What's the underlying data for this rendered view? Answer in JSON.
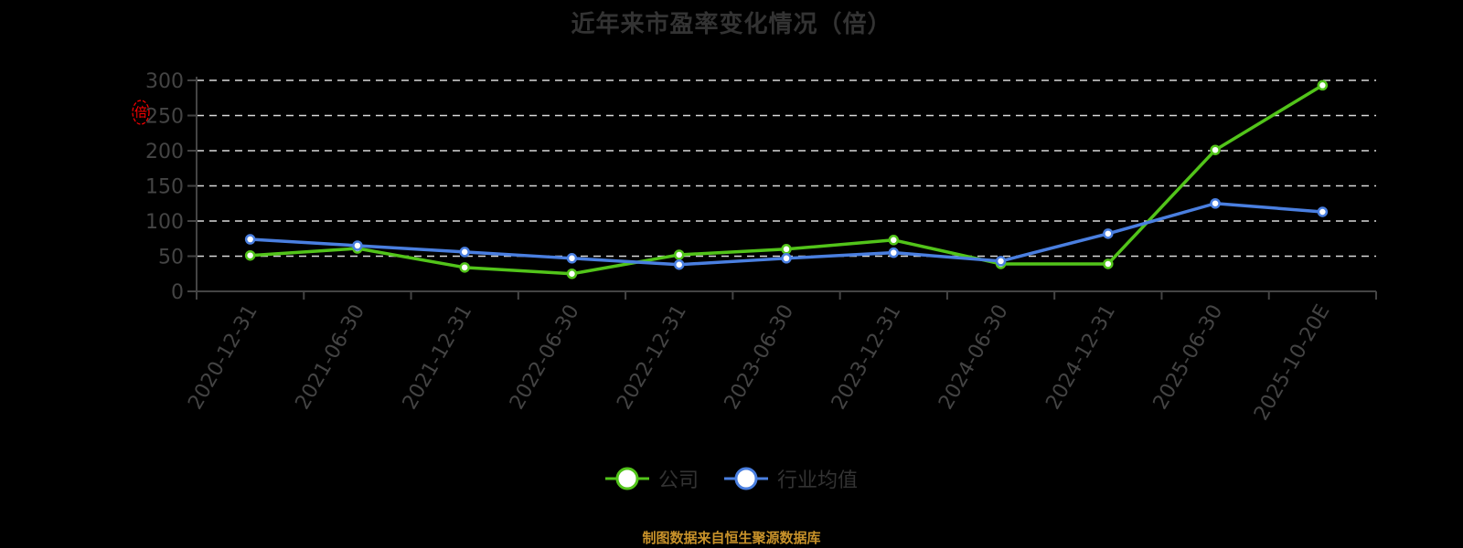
{
  "title": "近年来市盈率变化情况（倍）",
  "source_note": "制图数据来自恒生聚源数据库",
  "y_axis_marker": "倍",
  "legend": [
    {
      "label": "公司",
      "color": "#52c41a"
    },
    {
      "label": "行业均值",
      "color": "#4a7fe0"
    }
  ],
  "chart_data": {
    "type": "line",
    "title": "近年来市盈率变化情况（倍）",
    "xlabel": "",
    "ylabel": "倍",
    "ylim": [
      0,
      300
    ],
    "yticks": [
      0,
      50,
      100,
      150,
      200,
      250,
      300
    ],
    "grid": true,
    "legend_position": "bottom",
    "categories": [
      "2020-12-31",
      "2021-06-30",
      "2021-12-31",
      "2022-06-30",
      "2022-12-31",
      "2023-06-30",
      "2023-12-31",
      "2024-06-30",
      "2024-12-31",
      "2025-06-30",
      "2025-10-20E"
    ],
    "series": [
      {
        "name": "公司",
        "color": "#52c41a",
        "values": [
          51,
          61,
          34,
          25,
          52,
          60,
          73,
          39,
          39,
          201,
          293
        ]
      },
      {
        "name": "行业均值",
        "color": "#4a7fe0",
        "values": [
          74,
          65,
          56,
          47,
          38,
          47,
          55,
          43,
          82,
          125,
          113
        ]
      }
    ]
  }
}
